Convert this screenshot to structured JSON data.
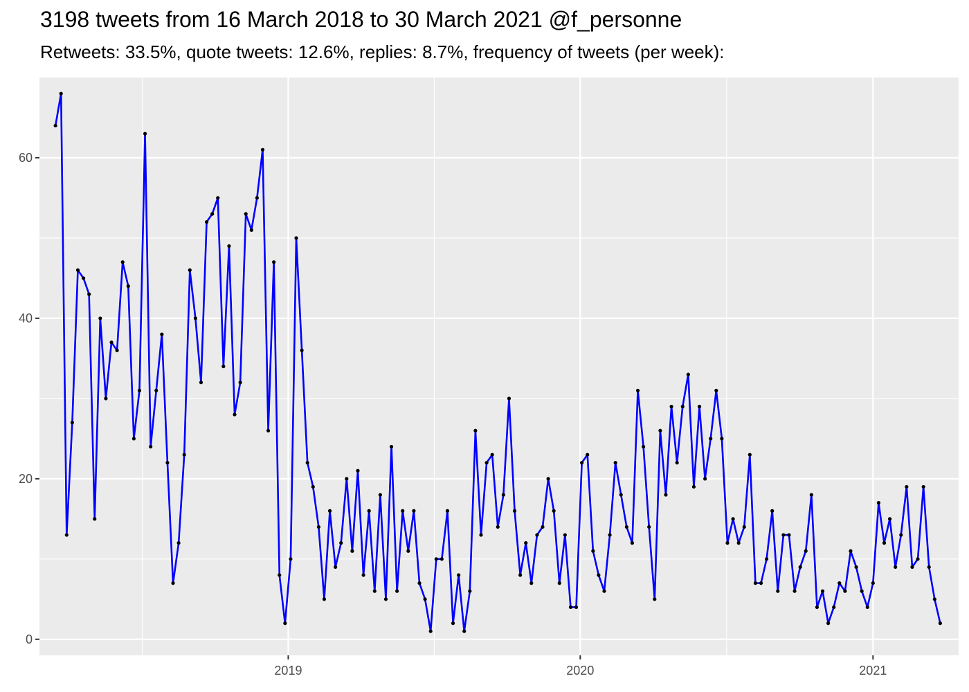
{
  "chart_data": {
    "type": "line",
    "title": "3198 tweets from 16 March 2018 to 30 March 2021 @f_personne",
    "subtitle": "Retweets: 33.5%, quote tweets: 12.6%, replies: 8.7%, frequency of tweets (per week):",
    "xlabel": "",
    "ylabel": "",
    "x_ticks": [
      {
        "label": "2019",
        "value": "2019-01-01"
      },
      {
        "label": "2020",
        "value": "2020-01-01"
      },
      {
        "label": "2021",
        "value": "2021-01-01"
      }
    ],
    "y_ticks": [
      0,
      20,
      40,
      60
    ],
    "ylim": [
      -2,
      70
    ],
    "xlim": [
      "2018-02-24",
      "2021-04-18"
    ],
    "grid": true,
    "colors": {
      "line": "#0000ff",
      "points": "#000000",
      "panel": "#ebebeb",
      "grid": "#ffffff"
    },
    "series": [
      {
        "x_start": "2018-03-16",
        "x_step_days": 7,
        "values": [
          64,
          68,
          13,
          27,
          46,
          45,
          43,
          15,
          40,
          30,
          37,
          36,
          47,
          44,
          25,
          31,
          63,
          24,
          31,
          38,
          22,
          7,
          12,
          23,
          46,
          40,
          32,
          52,
          53,
          55,
          34,
          49,
          28,
          32,
          53,
          51,
          55,
          61,
          26,
          47,
          8,
          2,
          10,
          50,
          36,
          22,
          19,
          14,
          5,
          16,
          9,
          12,
          20,
          11,
          21,
          8,
          16,
          6,
          18,
          5,
          24,
          6,
          16,
          11,
          16,
          7,
          5,
          1,
          10,
          10,
          16,
          2,
          8,
          1,
          6,
          26,
          13,
          22,
          23,
          14,
          18,
          30,
          16,
          8,
          12,
          7,
          13,
          14,
          20,
          16,
          7,
          13,
          4,
          4,
          22,
          23,
          11,
          8,
          6,
          13,
          22,
          18,
          14,
          12,
          31,
          24,
          14,
          5,
          26,
          18,
          29,
          22,
          29,
          33,
          19,
          29,
          20,
          25,
          31,
          25,
          12,
          15,
          12,
          14,
          23,
          7,
          7,
          10,
          16,
          6,
          13,
          13,
          6,
          9,
          11,
          18,
          4,
          6,
          2,
          4,
          7,
          6,
          11,
          9,
          6,
          4,
          7,
          17,
          12,
          15,
          9,
          13,
          19,
          9,
          10,
          19,
          9,
          5,
          2
        ]
      }
    ]
  }
}
